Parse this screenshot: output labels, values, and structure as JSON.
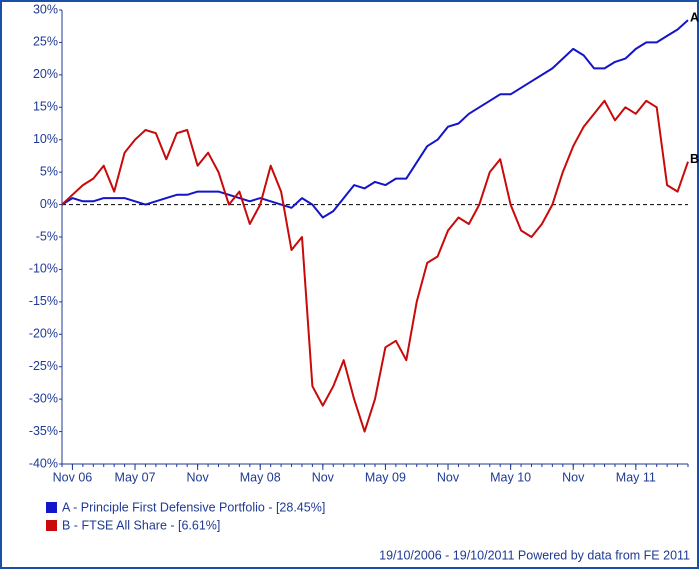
{
  "chart_data": {
    "type": "line",
    "categories": [
      null,
      "Nov 06",
      null,
      null,
      null,
      null,
      null,
      "May 07",
      null,
      null,
      null,
      null,
      null,
      "Nov",
      null,
      null,
      null,
      null,
      null,
      "May 08",
      null,
      null,
      null,
      null,
      null,
      "Nov",
      null,
      null,
      null,
      null,
      null,
      "May 09",
      null,
      null,
      null,
      null,
      null,
      "Nov",
      null,
      null,
      null,
      null,
      null,
      "May 10",
      null,
      null,
      null,
      null,
      null,
      "Nov",
      null,
      null,
      null,
      null,
      null,
      "May 11",
      null,
      null,
      null,
      null,
      null
    ],
    "series": [
      {
        "name": "A - Principle First Defensive Portfolio - [28.45%]",
        "label": "A",
        "color": "#1414c8",
        "values": [
          0,
          1,
          0.5,
          0.5,
          1,
          1,
          1,
          0.5,
          0,
          0.5,
          1,
          1.5,
          1.5,
          2,
          2,
          2,
          1.5,
          1,
          0.5,
          1,
          0.5,
          0,
          -0.5,
          1,
          0,
          -2,
          -1,
          1,
          3,
          2.5,
          3.5,
          3,
          4,
          4,
          6.5,
          9,
          10,
          12,
          12.5,
          14,
          15,
          16,
          17,
          17,
          18,
          19,
          20,
          21,
          22.5,
          24,
          23,
          21,
          21,
          22,
          22.5,
          24,
          25,
          25,
          26,
          27,
          28.45
        ]
      },
      {
        "name": "B - FTSE All Share - [6.61%]",
        "label": "B",
        "color": "#c80a0a",
        "values": [
          0,
          1.5,
          3,
          4,
          6,
          2,
          8,
          10,
          11.5,
          11,
          7,
          11,
          11.5,
          6,
          8,
          5,
          0,
          2,
          -3,
          0,
          6,
          2,
          -7,
          -5,
          -28,
          -31,
          -28,
          -24,
          -30,
          -35,
          -30,
          -22,
          -21,
          -24,
          -15,
          -9,
          -8,
          -4,
          -2,
          -3,
          0,
          5,
          7,
          0,
          -4,
          -5,
          -3,
          0,
          5,
          9,
          12,
          14,
          16,
          13,
          15,
          14,
          16,
          15,
          3,
          2,
          6.61
        ]
      }
    ],
    "ylim": [
      -40,
      30
    ],
    "yticks": [
      {
        "value": 30,
        "label": "30%"
      },
      {
        "value": 25,
        "label": "25%"
      },
      {
        "value": 20,
        "label": "20%"
      },
      {
        "value": 15,
        "label": "15%"
      },
      {
        "value": 10,
        "label": "10%"
      },
      {
        "value": 5,
        "label": "5%"
      },
      {
        "value": 0,
        "label": "0%"
      },
      {
        "value": -5,
        "label": "-5%"
      },
      {
        "value": -10,
        "label": "-10%"
      },
      {
        "value": -15,
        "label": "-15%"
      },
      {
        "value": -20,
        "label": "-20%"
      },
      {
        "value": -25,
        "label": "-25%"
      },
      {
        "value": -30,
        "label": "-30%"
      },
      {
        "value": -35,
        "label": "-35%"
      },
      {
        "value": -40,
        "label": "-40%"
      }
    ],
    "zero_line": true,
    "footer": "19/10/2006 - 19/10/2011 Powered by data from FE 2011"
  }
}
